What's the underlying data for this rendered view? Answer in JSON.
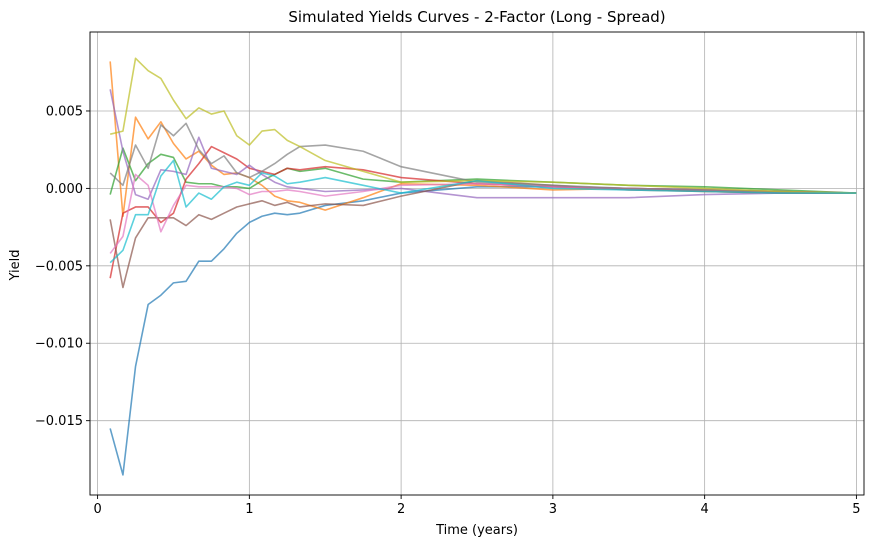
{
  "chart_data": {
    "type": "line",
    "title": "Simulated Yields Curves - 2-Factor (Long - Spread)",
    "xlabel": "Time (years)",
    "ylabel": "Yield",
    "xlim": [
      -0.05,
      5.05
    ],
    "ylim": [
      -0.0198,
      0.0101
    ],
    "xticks": [
      0,
      1,
      2,
      3,
      4,
      5
    ],
    "xtick_labels": [
      "0",
      "1",
      "2",
      "3",
      "4",
      "5"
    ],
    "yticks": [
      -0.015,
      -0.01,
      -0.005,
      0.0,
      0.005
    ],
    "ytick_labels": [
      "−0.015",
      "−0.010",
      "−0.005",
      "0.000",
      "0.005"
    ],
    "grid": true,
    "legend": "none",
    "series": [
      {
        "color": "#1f77b4",
        "x": [
          0.083,
          0.167,
          0.25,
          0.333,
          0.417,
          0.5,
          0.583,
          0.667,
          0.75,
          0.833,
          0.917,
          1.0,
          1.083,
          1.167,
          1.25,
          1.333,
          1.5,
          1.75,
          2.0,
          2.5,
          3.0,
          3.5,
          4.0,
          4.5,
          5.0
        ],
        "y": [
          -0.0155,
          -0.0185,
          -0.0115,
          -0.0075,
          -0.0069,
          -0.0061,
          -0.006,
          -0.0047,
          -0.0047,
          -0.0039,
          -0.0029,
          -0.0022,
          -0.0018,
          -0.0016,
          -0.0017,
          -0.0016,
          -0.0011,
          -0.0008,
          -0.0003,
          0.0001,
          0.0001,
          0.0,
          -0.0001,
          -0.0002,
          -0.0003
        ]
      },
      {
        "color": "#ff7f0e",
        "x": [
          0.083,
          0.167,
          0.25,
          0.333,
          0.417,
          0.5,
          0.583,
          0.667,
          0.75,
          0.833,
          0.917,
          1.0,
          1.083,
          1.167,
          1.25,
          1.333,
          1.5,
          1.75,
          2.0,
          2.5,
          3.0,
          3.5,
          4.0,
          4.5,
          5.0
        ],
        "y": [
          0.0082,
          -0.0018,
          0.0046,
          0.0032,
          0.0043,
          0.0029,
          0.0019,
          0.0024,
          0.0015,
          0.0009,
          0.001,
          0.0007,
          0.0002,
          -0.0005,
          -0.0008,
          -0.0009,
          -0.0014,
          -0.0006,
          0.0003,
          0.0002,
          -0.0001,
          0.0,
          -0.0002,
          -0.0003,
          -0.0003
        ]
      },
      {
        "color": "#2ca02c",
        "x": [
          0.083,
          0.167,
          0.25,
          0.333,
          0.417,
          0.5,
          0.583,
          0.667,
          0.75,
          0.833,
          0.917,
          1.0,
          1.083,
          1.167,
          1.25,
          1.333,
          1.5,
          1.75,
          2.0,
          2.5,
          3.0,
          3.5,
          4.0,
          4.5,
          5.0
        ],
        "y": [
          -0.0004,
          0.0026,
          0.0005,
          0.0016,
          0.0022,
          0.002,
          0.0004,
          0.0003,
          0.0003,
          0.0001,
          0.0001,
          0.0,
          0.0005,
          0.0009,
          0.0013,
          0.0011,
          0.0013,
          0.0006,
          0.0004,
          0.0006,
          0.0004,
          0.0002,
          0.0001,
          -0.0001,
          -0.0003
        ]
      },
      {
        "color": "#d62728",
        "x": [
          0.083,
          0.167,
          0.25,
          0.333,
          0.417,
          0.5,
          0.583,
          0.667,
          0.75,
          0.833,
          0.917,
          1.0,
          1.083,
          1.167,
          1.25,
          1.333,
          1.5,
          1.75,
          2.0,
          2.5,
          3.0,
          3.5,
          4.0,
          4.5,
          5.0
        ],
        "y": [
          -0.0058,
          -0.0016,
          -0.0012,
          -0.0012,
          -0.0022,
          -0.0016,
          0.0006,
          0.0016,
          0.0027,
          0.0023,
          0.0019,
          0.0013,
          0.0011,
          0.0009,
          0.0013,
          0.0012,
          0.0014,
          0.0012,
          0.0007,
          0.0003,
          0.0001,
          0.0,
          -0.0001,
          -0.0002,
          -0.0003
        ]
      },
      {
        "color": "#9467bd",
        "x": [
          0.083,
          0.167,
          0.25,
          0.333,
          0.417,
          0.5,
          0.583,
          0.667,
          0.75,
          0.833,
          0.917,
          1.0,
          1.083,
          1.167,
          1.25,
          1.333,
          1.5,
          1.75,
          2.0,
          2.5,
          3.0,
          3.5,
          4.0,
          4.5,
          5.0
        ],
        "y": [
          0.0064,
          0.0024,
          -0.0004,
          -0.0007,
          0.0012,
          0.0011,
          0.0009,
          0.0033,
          0.0013,
          0.0011,
          0.0009,
          0.0015,
          0.0009,
          0.0004,
          0.0001,
          0.0,
          -0.0002,
          -0.0001,
          0.0,
          -0.0006,
          -0.0006,
          -0.0006,
          -0.0004,
          -0.0003,
          -0.0003
        ]
      },
      {
        "color": "#8c564b",
        "x": [
          0.083,
          0.167,
          0.25,
          0.333,
          0.417,
          0.5,
          0.583,
          0.667,
          0.75,
          0.833,
          0.917,
          1.0,
          1.083,
          1.167,
          1.25,
          1.333,
          1.5,
          1.75,
          2.0,
          2.5,
          3.0,
          3.5,
          4.0,
          4.5,
          5.0
        ],
        "y": [
          -0.002,
          -0.0064,
          -0.0032,
          -0.0019,
          -0.0019,
          -0.0019,
          -0.0024,
          -0.0017,
          -0.002,
          -0.0016,
          -0.0012,
          -0.001,
          -0.0008,
          -0.0011,
          -0.0009,
          -0.0012,
          -0.001,
          -0.0011,
          -0.0005,
          0.0005,
          0.0002,
          -0.0001,
          -0.0002,
          -0.0003,
          -0.0003
        ]
      },
      {
        "color": "#e377c2",
        "x": [
          0.083,
          0.167,
          0.25,
          0.333,
          0.417,
          0.5,
          0.583,
          0.667,
          0.75,
          0.833,
          0.917,
          1.0,
          1.083,
          1.167,
          1.25,
          1.333,
          1.5,
          1.75,
          2.0,
          2.5,
          3.0,
          3.5,
          4.0,
          4.5,
          5.0
        ],
        "y": [
          -0.0042,
          -0.0031,
          0.0009,
          0.0002,
          -0.0028,
          -0.0011,
          0.0002,
          0.0001,
          0.0001,
          0.0001,
          0.0,
          -0.0004,
          -0.0002,
          -0.0002,
          -0.0001,
          -0.0002,
          -0.0005,
          -0.0002,
          0.0002,
          0.0003,
          0.0001,
          0.0,
          -0.0001,
          -0.0002,
          -0.0003
        ]
      },
      {
        "color": "#7f7f7f",
        "x": [
          0.083,
          0.167,
          0.25,
          0.333,
          0.417,
          0.5,
          0.583,
          0.667,
          0.75,
          0.833,
          0.917,
          1.0,
          1.083,
          1.167,
          1.25,
          1.333,
          1.5,
          1.75,
          2.0,
          2.5,
          3.0,
          3.5,
          4.0,
          4.5,
          5.0
        ],
        "y": [
          0.001,
          0.0002,
          0.0028,
          0.0013,
          0.0041,
          0.0034,
          0.0042,
          0.0025,
          0.0016,
          0.0021,
          0.001,
          0.0007,
          0.0011,
          0.0016,
          0.0022,
          0.0027,
          0.0028,
          0.0024,
          0.0014,
          0.0004,
          0.0002,
          0.0,
          -0.0001,
          -0.0002,
          -0.0003
        ]
      },
      {
        "color": "#bcbd22",
        "x": [
          0.083,
          0.167,
          0.25,
          0.333,
          0.417,
          0.5,
          0.583,
          0.667,
          0.75,
          0.833,
          0.917,
          1.0,
          1.083,
          1.167,
          1.25,
          1.333,
          1.5,
          1.75,
          2.0,
          2.5,
          3.0,
          3.5,
          4.0,
          4.5,
          5.0
        ],
        "y": [
          0.0035,
          0.0037,
          0.0084,
          0.0076,
          0.0071,
          0.0057,
          0.0045,
          0.0052,
          0.0048,
          0.005,
          0.0034,
          0.0028,
          0.0037,
          0.0038,
          0.0031,
          0.0027,
          0.0018,
          0.0011,
          0.0004,
          0.0005,
          0.0004,
          0.0002,
          0.0,
          -0.0002,
          -0.0003
        ]
      },
      {
        "color": "#17becf",
        "x": [
          0.083,
          0.167,
          0.25,
          0.333,
          0.417,
          0.5,
          0.583,
          0.667,
          0.75,
          0.833,
          0.917,
          1.0,
          1.083,
          1.167,
          1.25,
          1.333,
          1.5,
          1.75,
          2.0,
          2.5,
          3.0,
          3.5,
          4.0,
          4.5,
          5.0
        ],
        "y": [
          -0.0048,
          -0.004,
          -0.0017,
          -0.0017,
          0.0008,
          0.0018,
          -0.0012,
          -0.0003,
          -0.0007,
          0.0001,
          0.0004,
          0.0002,
          0.001,
          0.0008,
          0.0003,
          0.0004,
          0.0007,
          0.0002,
          -0.0003,
          0.0005,
          0.0,
          -0.0001,
          -0.0002,
          -0.0003,
          -0.0003
        ]
      }
    ]
  }
}
